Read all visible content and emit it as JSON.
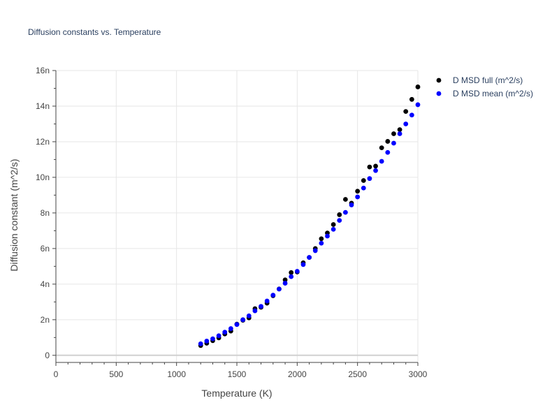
{
  "chart_data": {
    "type": "scatter",
    "title": "Diffusion constants vs. Temperature",
    "xlabel": "Temperature (K)",
    "ylabel": "Diffusion constant (m^2/s)",
    "xlim": [
      0,
      3000
    ],
    "ylim": [
      -0.4,
      16
    ],
    "x_ticks": [
      0,
      500,
      1000,
      1500,
      2000,
      2500,
      3000
    ],
    "x_tick_labels": [
      "0",
      "500",
      "1000",
      "1500",
      "2000",
      "2500",
      "3000"
    ],
    "y_ticks": [
      0,
      2,
      4,
      6,
      8,
      10,
      12,
      14,
      16
    ],
    "y_tick_labels": [
      "0",
      "2n",
      "4n",
      "6n",
      "8n",
      "10n",
      "12n",
      "14n",
      "16n"
    ],
    "grid": true,
    "legend_position": "top-right",
    "series": [
      {
        "name": "D MSD full (m^2/s)",
        "color": "#000000",
        "x": [
          1200,
          1250,
          1300,
          1350,
          1400,
          1450,
          1500,
          1550,
          1600,
          1650,
          1700,
          1750,
          1800,
          1850,
          1900,
          1950,
          2000,
          2050,
          2100,
          2150,
          2200,
          2250,
          2300,
          2350,
          2400,
          2450,
          2500,
          2550,
          2600,
          2650,
          2700,
          2750,
          2800,
          2850,
          2900,
          2950,
          3000
        ],
        "y": [
          0.55,
          0.68,
          0.82,
          0.98,
          1.2,
          1.36,
          1.75,
          1.97,
          2.1,
          2.62,
          2.7,
          2.93,
          3.35,
          3.73,
          4.24,
          4.65,
          4.68,
          5.2,
          5.5,
          6.0,
          6.55,
          6.87,
          7.35,
          7.9,
          8.76,
          8.55,
          9.22,
          9.82,
          10.58,
          10.63,
          11.66,
          12.02,
          12.45,
          12.68,
          13.7,
          14.38,
          15.08
        ]
      },
      {
        "name": "D MSD mean (m^2/s)",
        "color": "#0000ff",
        "x": [
          1200,
          1250,
          1300,
          1350,
          1400,
          1450,
          1500,
          1550,
          1600,
          1650,
          1700,
          1750,
          1800,
          1850,
          1900,
          1950,
          2000,
          2050,
          2100,
          2150,
          2200,
          2250,
          2300,
          2350,
          2400,
          2450,
          2500,
          2550,
          2600,
          2650,
          2700,
          2750,
          2800,
          2850,
          2900,
          2950,
          3000
        ],
        "y": [
          0.65,
          0.8,
          0.93,
          1.1,
          1.3,
          1.5,
          1.73,
          2.0,
          2.22,
          2.5,
          2.75,
          3.05,
          3.38,
          3.72,
          4.05,
          4.42,
          4.72,
          5.1,
          5.5,
          5.88,
          6.3,
          6.7,
          7.08,
          7.58,
          8.03,
          8.45,
          8.9,
          9.4,
          9.93,
          10.38,
          10.9,
          11.4,
          11.92,
          12.45,
          13.0,
          13.5,
          14.08
        ]
      }
    ]
  }
}
